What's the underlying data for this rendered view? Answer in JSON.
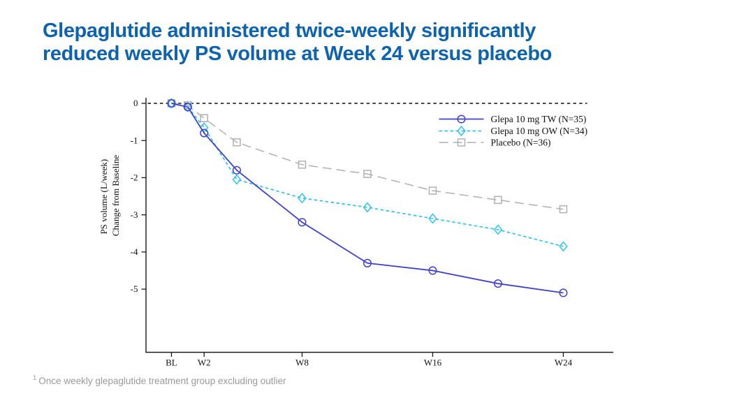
{
  "title": {
    "line1": "Glepaglutide administered twice-weekly significantly",
    "line2": "reduced weekly PS volume at Week 24 versus placebo"
  },
  "footnote": {
    "marker": "1",
    "text": "Once weekly glepaglutide treatment group excluding outlier"
  },
  "colors": {
    "title_blue": "#0E63AE",
    "tw_blue": "#4141D0",
    "ow_cyan": "#2EC3F0",
    "placebo_gray": "#B0B0B0",
    "axis_black": "#1A1A1A",
    "zero_line": "#2E2E2E",
    "footnote_gray": "#9A9A9A"
  },
  "chart_data": {
    "type": "line",
    "title": "",
    "xlabel": "",
    "ylabel": "PS volume (L/week) Change from Baseline",
    "ylabel_line1": "PS volume (L/week)",
    "ylabel_line2": "Change from Baseline",
    "x_unit": "weeks",
    "x": [
      0,
      1,
      2,
      4,
      8,
      12,
      16,
      20,
      24
    ],
    "x_ticks": [
      {
        "week": 0,
        "label": "BL"
      },
      {
        "week": 2,
        "label": "W2"
      },
      {
        "week": 8,
        "label": "W8"
      },
      {
        "week": 16,
        "label": "W16"
      },
      {
        "week": 24,
        "label": "W24"
      }
    ],
    "y_ticks": [
      0,
      -1,
      -2,
      -3,
      -4,
      -5
    ],
    "xlim": [
      -1.56,
      27.06
    ],
    "ylim": [
      -6.7,
      0.15
    ],
    "grid": false,
    "legend_position": "upper-right-inside",
    "reference_line": {
      "y": 0,
      "style": "dashed",
      "color": "#2E2E2E"
    },
    "series": [
      {
        "name": "Glepa 10 mg TW (N=35)",
        "marker": "circle",
        "line": "solid",
        "color": "#4141D0",
        "values": [
          0,
          -0.1,
          -0.8,
          -1.8,
          -3.2,
          -4.3,
          -4.5,
          -4.85,
          -5.1
        ]
      },
      {
        "name": "Glepa 10 mg OW (N=34)",
        "marker": "diamond",
        "line": "dashed-short",
        "color": "#2EC3F0",
        "values": [
          0,
          -0.1,
          -0.65,
          -2.05,
          -2.55,
          -2.8,
          -3.1,
          -3.4,
          -3.85
        ]
      },
      {
        "name": "Placebo (N=36)",
        "marker": "square",
        "line": "dashed-long",
        "color": "#B0B0B0",
        "values": [
          0,
          -0.05,
          -0.4,
          -1.05,
          -1.65,
          -1.9,
          -2.35,
          -2.6,
          -2.85
        ]
      }
    ]
  }
}
